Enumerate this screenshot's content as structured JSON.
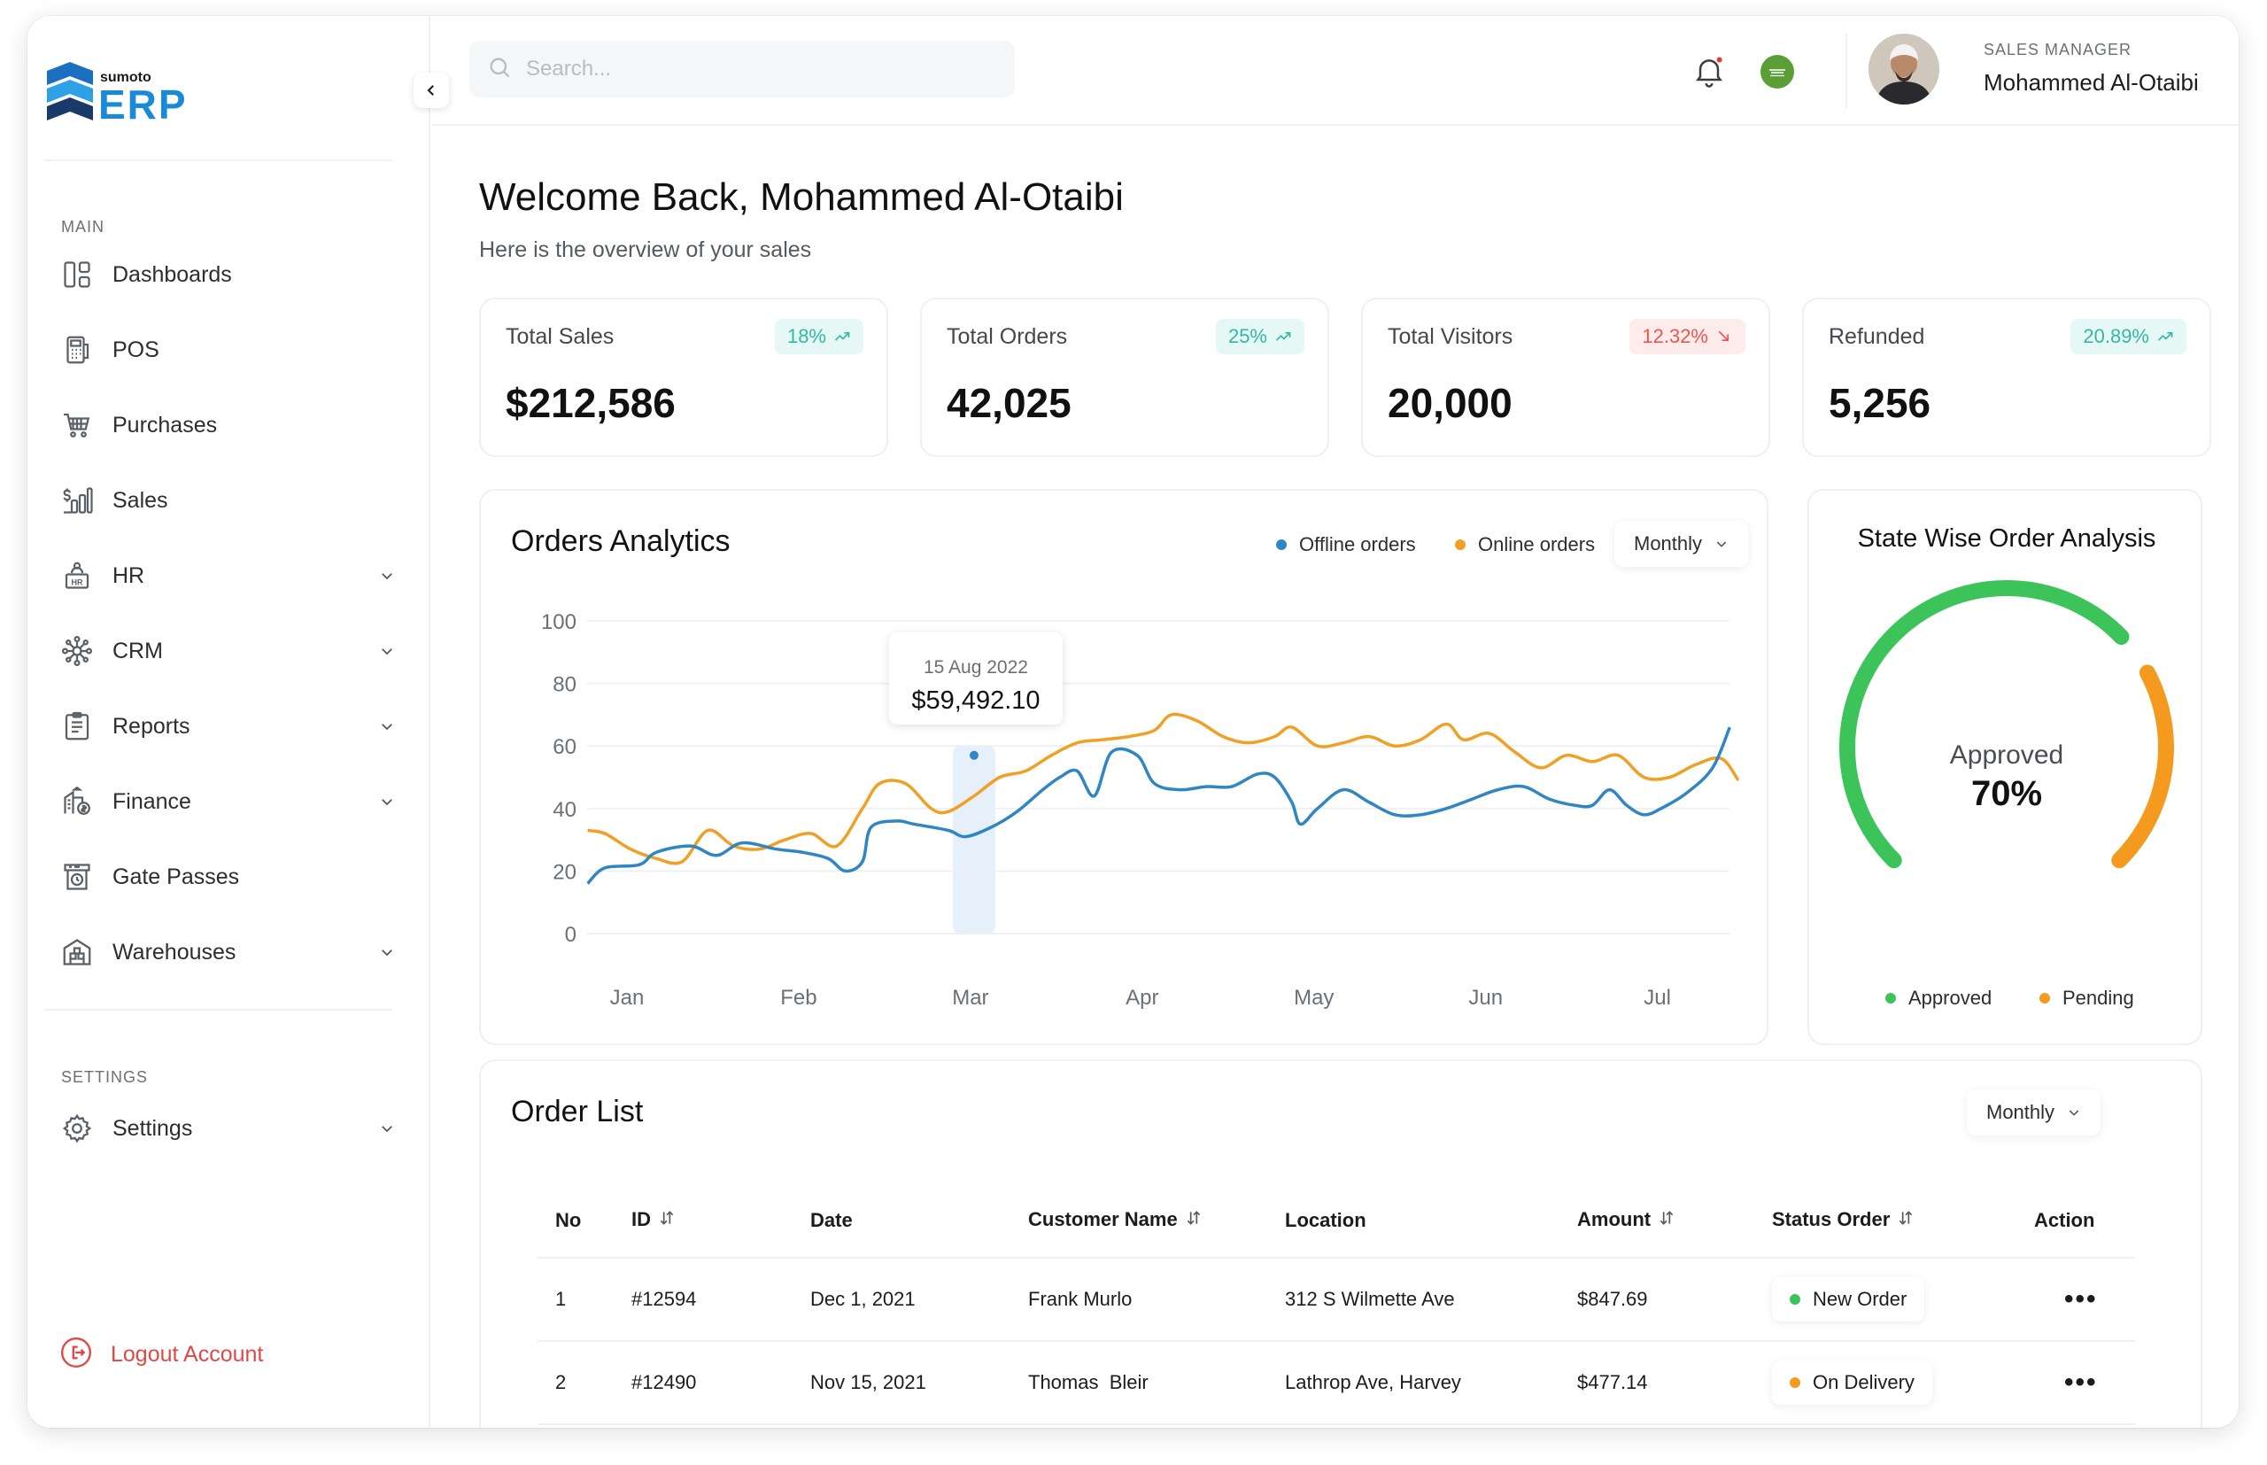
{
  "sidebar": {
    "logo": {
      "small_text": "sumoto",
      "text": "ERP"
    },
    "main_label": "MAIN",
    "items": [
      {
        "label": "Dashboards",
        "icon": "dashboard-icon",
        "expandable": false
      },
      {
        "label": "POS",
        "icon": "pos-icon",
        "expandable": false
      },
      {
        "label": "Purchases",
        "icon": "cart-icon",
        "expandable": false
      },
      {
        "label": "Sales",
        "icon": "sales-icon",
        "expandable": false
      },
      {
        "label": "HR",
        "icon": "hr-icon",
        "expandable": true
      },
      {
        "label": "CRM",
        "icon": "crm-icon",
        "expandable": true
      },
      {
        "label": "Reports",
        "icon": "reports-icon",
        "expandable": true
      },
      {
        "label": "Finance",
        "icon": "finance-icon",
        "expandable": true
      },
      {
        "label": "Gate Passes",
        "icon": "gate-pass-icon",
        "expandable": false
      },
      {
        "label": "Warehouses",
        "icon": "warehouse-icon",
        "expandable": true
      }
    ],
    "settings_label": "SETTINGS",
    "settings_item": {
      "label": "Settings",
      "icon": "gear-icon"
    },
    "logout_label": "Logout Account"
  },
  "header": {
    "search_placeholder": "Search...",
    "user": {
      "role": "SALES MANAGER",
      "name": "Mohammed Al-Otaibi"
    }
  },
  "welcome": {
    "title": "Welcome Back, Mohammed Al-Otaibi",
    "subtitle": "Here is the overview of your sales"
  },
  "stats": [
    {
      "title": "Total Sales",
      "value": "$212,586",
      "change": "18%",
      "trend": "up"
    },
    {
      "title": "Total Orders",
      "value": "42,025",
      "change": "25%",
      "trend": "up"
    },
    {
      "title": "Total Visitors",
      "value": "20,000",
      "change": "12.32%",
      "trend": "down"
    },
    {
      "title": "Refunded",
      "value": "5,256",
      "change": "20.89%",
      "trend": "up"
    }
  ],
  "orders_analytics": {
    "title": "Orders Analytics",
    "legend": [
      "Offline orders",
      "Online orders"
    ],
    "period": "Monthly",
    "tooltip": {
      "date": "15 Aug 2022",
      "value": "$59,492.10"
    }
  },
  "chart_data": {
    "type": "line",
    "x_labels": [
      "Jan",
      "Feb",
      "Mar",
      "Apr",
      "May",
      "Jun",
      "Jul"
    ],
    "y_ticks": [
      "100",
      "80",
      "60",
      "40",
      "20",
      "0"
    ],
    "ylim": [
      0,
      100
    ],
    "xlim": [
      0,
      6.6
    ],
    "series": [
      {
        "name": "Offline orders",
        "color": "#2f86c2",
        "points": [
          [
            -0.1,
            16
          ],
          [
            0.0,
            21
          ],
          [
            0.2,
            22
          ],
          [
            0.3,
            26
          ],
          [
            0.5,
            28
          ],
          [
            0.65,
            25
          ],
          [
            0.8,
            29
          ],
          [
            1.0,
            27
          ],
          [
            1.15,
            26
          ],
          [
            1.3,
            24
          ],
          [
            1.4,
            20
          ],
          [
            1.5,
            23
          ],
          [
            1.55,
            34
          ],
          [
            1.7,
            36
          ],
          [
            1.8,
            35
          ],
          [
            2.0,
            33
          ],
          [
            2.1,
            31
          ],
          [
            2.25,
            34
          ],
          [
            2.4,
            39
          ],
          [
            2.55,
            46
          ],
          [
            2.65,
            50
          ],
          [
            2.75,
            52
          ],
          [
            2.85,
            44
          ],
          [
            2.95,
            58
          ],
          [
            3.1,
            57
          ],
          [
            3.2,
            48
          ],
          [
            3.35,
            46
          ],
          [
            3.5,
            47
          ],
          [
            3.65,
            47
          ],
          [
            3.8,
            51
          ],
          [
            3.9,
            50
          ],
          [
            4.0,
            42
          ],
          [
            4.05,
            35
          ],
          [
            4.15,
            40
          ],
          [
            4.3,
            46
          ],
          [
            4.45,
            42
          ],
          [
            4.6,
            38
          ],
          [
            4.75,
            38
          ],
          [
            4.9,
            40
          ],
          [
            5.05,
            43
          ],
          [
            5.2,
            46
          ],
          [
            5.35,
            47
          ],
          [
            5.5,
            43
          ],
          [
            5.65,
            41
          ],
          [
            5.75,
            41
          ],
          [
            5.85,
            46
          ],
          [
            5.95,
            41
          ],
          [
            6.05,
            38
          ],
          [
            6.15,
            40
          ],
          [
            6.3,
            45
          ],
          [
            6.45,
            53
          ],
          [
            6.55,
            66
          ]
        ]
      },
      {
        "name": "Online orders",
        "color": "#f0a024",
        "points": [
          [
            -0.1,
            33
          ],
          [
            0.0,
            32
          ],
          [
            0.15,
            27
          ],
          [
            0.3,
            24
          ],
          [
            0.45,
            23
          ],
          [
            0.6,
            33
          ],
          [
            0.75,
            28
          ],
          [
            0.9,
            27
          ],
          [
            1.05,
            30
          ],
          [
            1.2,
            32
          ],
          [
            1.35,
            28
          ],
          [
            1.5,
            40
          ],
          [
            1.6,
            48
          ],
          [
            1.75,
            48
          ],
          [
            1.9,
            40
          ],
          [
            2.0,
            39
          ],
          [
            2.15,
            44
          ],
          [
            2.3,
            50
          ],
          [
            2.45,
            52
          ],
          [
            2.6,
            57
          ],
          [
            2.75,
            61
          ],
          [
            2.9,
            62
          ],
          [
            3.05,
            63
          ],
          [
            3.2,
            65
          ],
          [
            3.3,
            70
          ],
          [
            3.45,
            68
          ],
          [
            3.6,
            63
          ],
          [
            3.75,
            61
          ],
          [
            3.9,
            63
          ],
          [
            4.0,
            66
          ],
          [
            4.15,
            60
          ],
          [
            4.3,
            61
          ],
          [
            4.45,
            63
          ],
          [
            4.6,
            60
          ],
          [
            4.75,
            62
          ],
          [
            4.9,
            67
          ],
          [
            5.0,
            62
          ],
          [
            5.15,
            64
          ],
          [
            5.3,
            58
          ],
          [
            5.45,
            53
          ],
          [
            5.6,
            57
          ],
          [
            5.75,
            55
          ],
          [
            5.9,
            57
          ],
          [
            6.05,
            50
          ],
          [
            6.2,
            50
          ],
          [
            6.35,
            54
          ],
          [
            6.5,
            56
          ],
          [
            6.6,
            49
          ]
        ]
      }
    ],
    "highlight_x": 2.15
  },
  "state_wise": {
    "title": "State Wise Order Analysis",
    "center_label": "Approved",
    "center_value": "70%",
    "approved_fraction": 0.7,
    "legend": [
      "Approved",
      "Pending"
    ],
    "colors": {
      "approved": "#3cc45a",
      "pending": "#f39a1f"
    }
  },
  "order_list": {
    "title": "Order List",
    "period": "Monthly",
    "columns": [
      "No",
      "ID",
      "Date",
      "Customer Name",
      "Location",
      "Amount",
      "Status Order",
      "Action"
    ],
    "rows": [
      {
        "no": "1",
        "id": "#12594",
        "date": "Dec 1, 2021",
        "customer": "Frank Murlo",
        "location": "312 S Wilmette Ave",
        "amount": "$847.69",
        "status": "New Order",
        "status_color": "#3cc45a"
      },
      {
        "no": "2",
        "id": "#12490",
        "date": "Nov 15, 2021",
        "customer": "Thomas  Bleir",
        "location": "Lathrop Ave, Harvey",
        "amount": "$477.14",
        "status": "On Delivery",
        "status_color": "#f39a1f"
      }
    ]
  }
}
